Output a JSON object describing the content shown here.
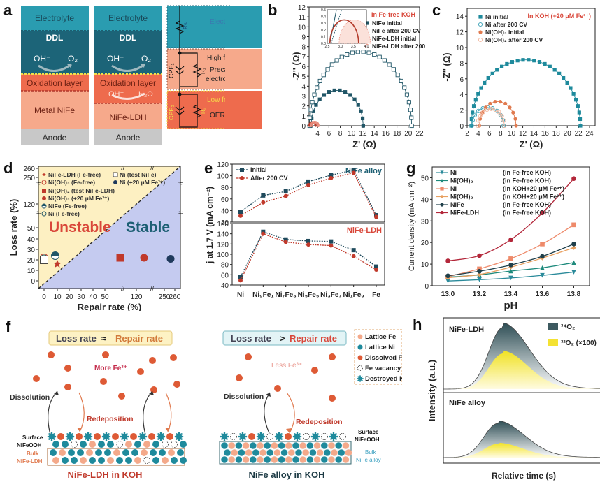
{
  "panel_labels": {
    "a": "a",
    "b": "b",
    "c": "c",
    "d": "d",
    "e": "e",
    "f": "f",
    "g": "g",
    "h": "h"
  },
  "colors": {
    "teal_dark": "#1c5f73",
    "teal": "#1e8a9c",
    "electrolyte": "#2a9cb0",
    "oxidation": "#ee6b4d",
    "metal": "#f6a98b",
    "anode": "#c8c8c8",
    "navy": "#1f4a5c",
    "red": "#c0392b",
    "orange": "#e07a4f",
    "yellow_bg": "#fdf2c4",
    "blue_bg": "#c7cdf1"
  },
  "panel_a": {
    "stack1": {
      "electrolyte": "Electrolyte",
      "ddl": "DDL",
      "oh": "OH⁻",
      "o2": "O₂",
      "oxidation": "Oxidation layer",
      "bulk": "Metal NiFe",
      "anode": "Anode"
    },
    "stack2": {
      "electrolyte": "Electrolyte",
      "ddl": "DDL",
      "oh": "OH⁻",
      "o2": "O₂",
      "oxidation": "Oxidation layer",
      "oh2": "OH⁻",
      "h2o": "H₂O",
      "bulk": "NiFe-LDH",
      "anode": "Anode"
    },
    "circuit": {
      "rs": "Rs",
      "r1": "R₁",
      "r2": "R₂",
      "cpe1": "CPE₁",
      "cpe2": "CPE₂",
      "region1": "Electrolyte resistance",
      "region2_title": "High frequency",
      "region2_body1": "Precatalyst",
      "region2_body2": "electrooxidation",
      "region3_title": "Low frequency",
      "region3_body": "OER"
    }
  },
  "chart_data": [
    {
      "id": "b",
      "type": "scatter",
      "title": "In Fe-free KOH",
      "xlabel": "Z' (Ω)",
      "ylabel": "-Z'' (Ω)",
      "xlim": [
        2.5,
        22
      ],
      "ylim": [
        0,
        12
      ],
      "xticks": [
        4,
        6,
        8,
        10,
        12,
        14,
        16,
        18,
        20,
        22
      ],
      "yticks": [
        0,
        1,
        2,
        3,
        4,
        5,
        6,
        7,
        8,
        9,
        10,
        11,
        12
      ],
      "legend_position": "top-right",
      "series": [
        {
          "name": "NiFe initial",
          "marker": "square-filled",
          "color": "#1f5566",
          "center": 7.45,
          "radius": 4.6,
          "yscale": 0.78
        },
        {
          "name": "NiFe after 200 CV",
          "marker": "square-open",
          "color": "#1f5566",
          "center": 11.6,
          "radius": 9.0,
          "yscale": 0.83
        },
        {
          "name": "NiFe-LDH initial",
          "marker": "circle-filled",
          "color": "#b33a2a",
          "center": 3.1,
          "radius": 0.55,
          "yscale": 0.63
        },
        {
          "name": "NiFe-LDH after 200 CV",
          "marker": "circle-open",
          "color": "#e88a7a",
          "center": 3.5,
          "radius": 0.6,
          "yscale": 0.58
        }
      ],
      "inset": {
        "xlim": [
          2.5,
          4.0
        ],
        "ylim": [
          0,
          0.5
        ],
        "xticks": [
          2.5,
          3.0,
          3.5,
          4.0
        ],
        "yticks": [
          0.0,
          0.1,
          0.2,
          0.3,
          0.4,
          0.5
        ]
      }
    },
    {
      "id": "c",
      "type": "scatter",
      "title": "In KOH (+20 μM Fe³⁺)",
      "xlabel": "Z' (Ω)",
      "ylabel": "-Z'' (Ω)",
      "xlim": [
        2,
        25
      ],
      "ylim": [
        0,
        15
      ],
      "xticks": [
        2,
        4,
        6,
        8,
        10,
        12,
        14,
        16,
        18,
        20,
        22,
        24
      ],
      "yticks": [
        0,
        2,
        4,
        6,
        8,
        10,
        12,
        14
      ],
      "legend_position": "top-left",
      "series": [
        {
          "name": "Ni  initial",
          "marker": "square-filled",
          "color": "#1e8a9c",
          "center": 12.55,
          "radius": 9.8,
          "yscale": 0.86
        },
        {
          "name": "Ni  after 200 CV",
          "marker": "circle-open",
          "color": "#3aa0b5",
          "center": 5.7,
          "radius": 2.85,
          "yscale": 0.82
        },
        {
          "name": "Ni(OH)₂ initial",
          "marker": "circle-filled",
          "color": "#e07a4f",
          "center": 7.5,
          "radius": 3.3,
          "yscale": 0.94
        },
        {
          "name": "Ni(OH)₂ after 200 CV",
          "marker": "circle-open",
          "color": "#f2b8a0",
          "center": 6.3,
          "radius": 2.4,
          "yscale": 0.9
        }
      ]
    },
    {
      "id": "d",
      "type": "scatter",
      "xlabel": "Repair rate (%)",
      "ylabel": "Loss rate (%)",
      "xticks": [
        "0",
        "10",
        "20",
        "30",
        "40",
        "50",
        "120",
        "250",
        "260"
      ],
      "yticks": [
        "0",
        "10",
        "20",
        "30",
        "40",
        "50",
        "120",
        "250",
        "260"
      ],
      "region_labels": {
        "unstable": "Unstable",
        "stable": "Stable"
      },
      "legend_position": "top-left",
      "points": [
        {
          "name": "NiFe-LDH (Fe-free)",
          "marker": "star",
          "color": "#c0392b",
          "x": 14,
          "y": 16
        },
        {
          "name": "Ni(OH)₂ (Fe-free)",
          "marker": "circle-open",
          "color": "#c0392b",
          "x": 0,
          "y": 22
        },
        {
          "name": "Ni(OH)₂ (test NiFe-LDH)",
          "marker": "square-filled",
          "color": "#c0392b",
          "x": "~80",
          "y": 22
        },
        {
          "name": "Ni(OH)₂ (+20 μM Fe³⁺)",
          "marker": "circle-filled",
          "color": "#c0392b",
          "x": 125,
          "y": 22
        },
        {
          "name": "NiFe (Fe-free)",
          "marker": "half-circle",
          "color": "#1f5566",
          "x": 12,
          "y": 24
        },
        {
          "name": "Ni (Fe-free)",
          "marker": "circle-open",
          "color": "#1f5566",
          "x": 0,
          "y": 21
        },
        {
          "name": "Ni (test NiFe)",
          "marker": "square-open",
          "color": "#333333",
          "x": 0,
          "y": 20
        },
        {
          "name": "Ni (+20 μM Fe³⁺)",
          "marker": "circle-filled",
          "color": "#1f3a5c",
          "x": 250,
          "y": 21
        }
      ]
    },
    {
      "id": "e",
      "type": "line",
      "ylabel": "j at 1.7 V (mA cm⁻²)",
      "categories": [
        "Ni",
        "Ni₉Fe₁",
        "Ni₇Fe₃",
        "Ni₅Fe₅",
        "Ni₃Fe₇",
        "Ni₁Fe₉",
        "Fe"
      ],
      "legend_position": "top-left",
      "subplots": [
        {
          "label": "NiFe alloy",
          "ylim": [
            20,
            120
          ],
          "yticks": [
            20,
            40,
            60,
            80,
            100,
            120
          ],
          "series": [
            {
              "name": "Initial",
              "color": "#1f4a5c",
              "marker": "square",
              "values": [
                38,
                66,
                73,
                90,
                101,
                110,
                32
              ]
            },
            {
              "name": "After 200 CV",
              "color": "#c0392b",
              "marker": "circle",
              "values": [
                31,
                54,
                65,
                84,
                96,
                105,
                29
              ]
            }
          ]
        },
        {
          "label": "NiFe-LDH",
          "ylim": [
            40,
            160
          ],
          "yticks": [
            40,
            60,
            80,
            100,
            120,
            140,
            160
          ],
          "series": [
            {
              "name": "Initial",
              "color": "#1f4a5c",
              "marker": "square",
              "values": [
                56,
                144,
                129,
                126,
                125,
                108,
                76
              ]
            },
            {
              "name": "After 200 CV",
              "color": "#c0392b",
              "marker": "circle",
              "values": [
                49,
                140,
                124,
                119,
                117,
                96,
                70
              ]
            }
          ]
        }
      ]
    },
    {
      "id": "g",
      "type": "line",
      "xlabel": "pH",
      "ylabel": "Current density (mA cm⁻²)",
      "x": [
        13.0,
        13.2,
        13.4,
        13.6,
        13.8
      ],
      "xlim": [
        12.9,
        13.9
      ],
      "ylim": [
        0,
        55
      ],
      "xticks": [
        "13.0",
        "13.2",
        "13.4",
        "13.6",
        "13.8"
      ],
      "yticks": [
        0,
        10,
        20,
        30,
        40,
        50
      ],
      "legend_position": "top-left",
      "series": [
        {
          "name": "Ni",
          "cond": "(in Fe-free KOH)",
          "color": "#2a8a9a",
          "marker": "tri-down",
          "values": [
            2.2,
            2.8,
            3.6,
            4.8,
            6.3
          ]
        },
        {
          "name": "Ni(OH)₂",
          "cond": "(in Fe-free KOH)",
          "color": "#1e8a7c",
          "marker": "tri-up",
          "values": [
            4.0,
            5.0,
            6.8,
            8.3,
            10.7
          ]
        },
        {
          "name": "Ni",
          "cond": "(in KOH+20 μM Fe³⁺)",
          "color": "#ee8a6a",
          "marker": "square",
          "values": [
            4.2,
            7.8,
            12.5,
            19.3,
            28.2
          ]
        },
        {
          "name": "Ni(OH)₂",
          "cond": "(in KOH+20 μM Fe³⁺)",
          "color": "#e8a060",
          "marker": "diamond",
          "values": [
            3.7,
            5.2,
            8.6,
            12.8,
            17.6
          ]
        },
        {
          "name": "NiFe",
          "cond": "(in Fe-free KOH)",
          "color": "#1f3f4a",
          "marker": "circle",
          "values": [
            4.6,
            6.7,
            9.6,
            13.6,
            19.3
          ]
        },
        {
          "name": "NiFe-LDH",
          "cond": "(in Fe-free KOH)",
          "color": "#b3273a",
          "marker": "circle",
          "values": [
            11.5,
            13.9,
            21.3,
            33.7,
            49.6
          ]
        }
      ]
    },
    {
      "id": "h",
      "type": "area",
      "xlabel": "Relative time (s)",
      "ylabel": "Intensity (a.u.)",
      "legend_position": "top-right",
      "legend": [
        {
          "name": "³⁴O₂",
          "color": "#3d5a60"
        },
        {
          "name": "³²O₂ (×100)",
          "color": "#f4e233"
        }
      ],
      "subplots": [
        {
          "label": "NiFe-LDH",
          "peak_34": 1.0,
          "peak_32": 0.55
        },
        {
          "label": "NiFe alloy",
          "peak_34": 0.72,
          "peak_32": 0.18
        }
      ]
    }
  ],
  "panel_f": {
    "left": {
      "banner_loss": "Loss rate",
      "banner_op": "≈",
      "banner_repair": "Repair rate",
      "fe_text": "More Fe³⁺",
      "dissolution": "Dissolution",
      "redeposition": "Redeposition",
      "surface1": "Surface",
      "surface2": "NiFeOOH",
      "bulk1": "Bulk",
      "bulk2": "NiFe-LDH",
      "caption": "NiFe-LDH in KOH"
    },
    "right": {
      "banner_loss": "Loss rate",
      "banner_op": ">",
      "banner_repair": "Repair rate",
      "fe_text": "Less Fe³⁺",
      "dissolution": "Dissolution",
      "redeposition": "Redeposition",
      "surface1": "Surface",
      "surface2": "NiFeOOH",
      "bulk1": "Bulk",
      "bulk2": "NiFe alloy",
      "caption": "NiFe alloy in KOH"
    },
    "legend": [
      {
        "name": "Lattice Fe",
        "icon": "circle-peach"
      },
      {
        "name": "Lattice Ni",
        "icon": "circle-teal"
      },
      {
        "name": "Dissolved Fe",
        "icon": "circle-red"
      },
      {
        "name": "Fe vacancy",
        "icon": "circle-dashed"
      },
      {
        "name": "Destroyed Ni",
        "icon": "gear-teal"
      }
    ]
  }
}
